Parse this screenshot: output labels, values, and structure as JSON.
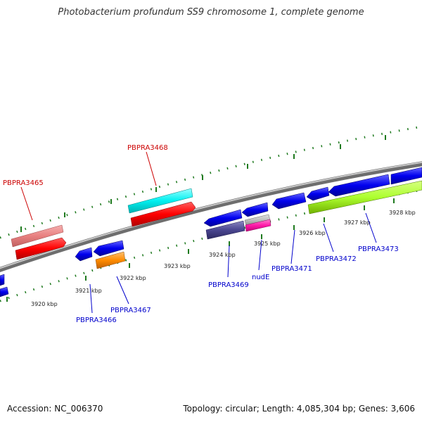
{
  "header": {
    "title": "Photobacterium profundum SS9 chromosome 1, complete genome"
  },
  "footer": {
    "accession": "Accession: NC_006370",
    "summary": "Topology: circular; Length: 4,085,304 bp; Genes: 3,606"
  },
  "colors": {
    "backbone": "#8c8c8c",
    "ticks": "#1f7a1f",
    "label_red": "#cc0000",
    "label_blue": "#0000cc",
    "scale_text": "#222222"
  },
  "scale_labels": [
    "3920 kbp",
    "3921 kbp",
    "3922 kbp",
    "3923 kbp",
    "3924 kbp",
    "3925 kbp",
    "3926 kbp",
    "3927 kbp",
    "3928 kbp"
  ],
  "genes_top": [
    {
      "label": "PBPRA3465",
      "color": "#cc0000"
    },
    {
      "label": "PBPRA3468",
      "color": "#cc0000"
    }
  ],
  "genes_bottom": [
    {
      "label": "PBPRA3466",
      "color": "#0000cc"
    },
    {
      "label": "PBPRA3467",
      "color": "#0000cc"
    },
    {
      "label": "PBPRA3469",
      "color": "#0000cc"
    },
    {
      "label": "nudE",
      "color": "#0000cc"
    },
    {
      "label": "PBPRA3471",
      "color": "#0000cc"
    },
    {
      "label": "PBPRA3472",
      "color": "#0000cc"
    },
    {
      "label": "PBPRA3473",
      "color": "#0000cc"
    }
  ]
}
